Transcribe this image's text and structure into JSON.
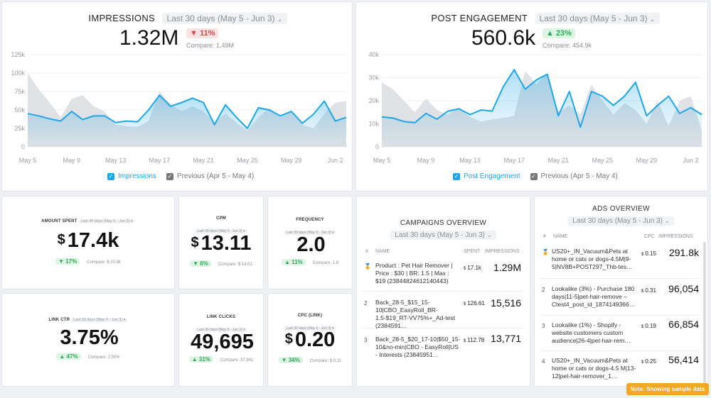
{
  "impressions": {
    "title": "IMPRESSIONS",
    "range": "Last 30 days (May 5 - Jun 3)",
    "value": "1.32M",
    "delta": "▼ 11%",
    "compare": "Compare: 1.49M",
    "y_ticks": [
      "125k",
      "100k",
      "75k",
      "50k",
      "25k",
      "0"
    ],
    "x_ticks": [
      "May 5",
      "May 9",
      "May 13",
      "May 17",
      "May 21",
      "May 25",
      "May 29",
      "Jun 2"
    ],
    "legend_current": "Impressions",
    "legend_previous": "Previous (Apr 5 - May 4)"
  },
  "engagement": {
    "title": "POST ENGAGEMENT",
    "range": "Last 30 days (May 5 - Jun 3)",
    "value": "560.6k",
    "delta": "▲ 23%",
    "compare": "Compare: 454.9k",
    "y_ticks": [
      "40k",
      "30k",
      "20k",
      "10k",
      "0"
    ],
    "x_ticks": [
      "May 5",
      "May 9",
      "May 13",
      "May 17",
      "May 21",
      "May 25",
      "May 29",
      "Jun 2"
    ],
    "legend_current": "Post Engagement",
    "legend_previous": "Previous (Apr 5 - May 4)"
  },
  "chart_data": [
    {
      "type": "area",
      "title": "IMPRESSIONS",
      "ylim": [
        0,
        125000
      ],
      "x": [
        "May 5",
        "May 6",
        "May 7",
        "May 8",
        "May 9",
        "May 10",
        "May 11",
        "May 12",
        "May 13",
        "May 14",
        "May 15",
        "May 16",
        "May 17",
        "May 18",
        "May 19",
        "May 20",
        "May 21",
        "May 22",
        "May 23",
        "May 24",
        "May 25",
        "May 26",
        "May 27",
        "May 28",
        "May 29",
        "May 30",
        "May 31",
        "Jun 1",
        "Jun 2",
        "Jun 3"
      ],
      "series": [
        {
          "name": "Impressions",
          "values": [
            45000,
            42000,
            38000,
            35000,
            48000,
            37000,
            42000,
            42000,
            33000,
            35000,
            34000,
            50000,
            70000,
            55000,
            60000,
            66000,
            60000,
            30000,
            57000,
            40000,
            25000,
            53000,
            50000,
            42000,
            48000,
            32000,
            44000,
            62000,
            35000,
            40000
          ]
        },
        {
          "name": "Previous (Apr 5 - May 4)",
          "values": [
            100000,
            78000,
            60000,
            40000,
            65000,
            70000,
            55000,
            48000,
            30000,
            28000,
            27000,
            35000,
            75000,
            58000,
            48000,
            55000,
            48000,
            34000,
            45000,
            33000,
            22000,
            40000,
            52000,
            40000,
            47000,
            30000,
            25000,
            45000,
            60000,
            62000
          ]
        }
      ]
    },
    {
      "type": "area",
      "title": "POST ENGAGEMENT",
      "ylim": [
        0,
        40000
      ],
      "x": [
        "May 5",
        "May 6",
        "May 7",
        "May 8",
        "May 9",
        "May 10",
        "May 11",
        "May 12",
        "May 13",
        "May 14",
        "May 15",
        "May 16",
        "May 17",
        "May 18",
        "May 19",
        "May 20",
        "May 21",
        "May 22",
        "May 23",
        "May 24",
        "May 25",
        "May 26",
        "May 27",
        "May 28",
        "May 29",
        "May 30",
        "May 31",
        "Jun 1",
        "Jun 2",
        "Jun 3"
      ],
      "series": [
        {
          "name": "Post Engagement",
          "values": [
            13000,
            12500,
            11000,
            10500,
            14500,
            12000,
            15500,
            16500,
            14000,
            16000,
            15500,
            26000,
            33500,
            25000,
            29000,
            31500,
            13500,
            24000,
            8500,
            24000,
            22000,
            18000,
            22000,
            28000,
            13500,
            18000,
            22000,
            14500,
            17000,
            14000
          ]
        },
        {
          "name": "Previous (Apr 5 - May 4)",
          "values": [
            28000,
            25000,
            20000,
            15000,
            21000,
            16000,
            14000,
            17000,
            13000,
            11000,
            12000,
            12500,
            13500,
            33000,
            27000,
            32000,
            15000,
            18000,
            14000,
            27000,
            20000,
            14000,
            19000,
            16000,
            10000,
            20000,
            9000,
            20000,
            22000,
            7000
          ]
        }
      ]
    }
  ],
  "kpis": {
    "amount_spent": {
      "title": "AMOUNT SPENT",
      "range": "Last 30 days (May 5 - Jun 3)",
      "currency": "$",
      "value": "17.4k",
      "delta": "▼ 17%",
      "compare": "Compare: $ 20.8k"
    },
    "cpm": {
      "title": "CPM",
      "range": "Last 30 days (May 5 - Jun 3)",
      "currency": "$",
      "value": "13.11",
      "delta": "▼ 6%",
      "compare": "Compare: $ 14.01"
    },
    "frequency": {
      "title": "FREQUENCY",
      "range": "Last 30 days (May 5 - Jun 3)",
      "currency": "",
      "value": "2.0",
      "delta": "▲ 11%",
      "compare": "Compare: 1.8"
    },
    "link_ctr": {
      "title": "LINK CTR",
      "range": "Last 30 days (May 5 - Jun 3)",
      "currency": "",
      "value": "3.75%",
      "delta": "▲ 47%",
      "compare": "Compare: 2.55%"
    },
    "link_clicks": {
      "title": "LINK CLICKS",
      "range": "Last 30 days (May 5 - Jun 3)",
      "currency": "",
      "value": "49,695",
      "delta": "▲ 31%",
      "compare": "Compare: 37,941"
    },
    "cpc": {
      "title": "CPC (LINK)",
      "range": "Last 30 days (May 5 - Jun 3)",
      "currency": "$",
      "value": "0.20",
      "delta": "▼ 34%",
      "compare": "Compare: $ 0.31"
    }
  },
  "campaigns": {
    "title": "CAMPAIGNS OVERVIEW",
    "range": "Last 30 days (May 5 - Jun 3)",
    "headers": {
      "idx": "#",
      "name": "NAME",
      "spent": "SPENT",
      "impressions": "IMPRESSIONS"
    },
    "rows": [
      {
        "idx": "🏅",
        "name": "Product : Pet Hair Remover | Price : $30 | BR: 1.5 | Max : $19 (23844824612140443)",
        "spent_cur": "$",
        "spent": "17.1k",
        "impressions": "1.29M"
      },
      {
        "idx": "2",
        "name": "Back_28-5_$15_15-10|CBO_EasyRoll_BR-1.5-$19_RT-VV75%+_Ad-test (2384591…",
        "spent_cur": "$",
        "spent": "126.61",
        "impressions": "15,516"
      },
      {
        "idx": "3",
        "name": "Back_28-5_$20_17-10|$50_15-10&no-min|CBO - EasyRoll|US - Interests (23845951…",
        "spent_cur": "$",
        "spent": "112.78",
        "impressions": "13,771"
      }
    ]
  },
  "ads": {
    "title": "ADS OVERVIEW",
    "range": "Last 30 days (May 5 - Jun 3)",
    "headers": {
      "idx": "#",
      "name": "NAME",
      "cpc": "CPC",
      "impressions": "IMPRESSIONS"
    },
    "rows": [
      {
        "idx": "🏅",
        "name": "US20+_IN_Vacuum&Pets at home or cats or dogs-4.5M|9-5|NV8B+POST297_Thb-tes…",
        "cpc_cur": "$",
        "cpc": "0.15",
        "impressions": "291.8k"
      },
      {
        "idx": "2",
        "name": "Lookalike (3%) - Purchase 180 days|11-5|pet-hair-remove – Ctest4_post_id_1874149366…",
        "cpc_cur": "$",
        "cpc": "0.31",
        "impressions": "96,054"
      },
      {
        "idx": "3",
        "name": "Lookalike (1%) - Shopify - website customers custom audience|26-4|pet-hair-rem…",
        "cpc_cur": "$",
        "cpc": "0.19",
        "impressions": "66,854"
      },
      {
        "idx": "4",
        "name": "US20+_IN_Vacuum&Pets at home or cats or dogs-4.5 M|13-12|pet-hair-remover_1…",
        "cpc_cur": "$",
        "cpc": "0.25",
        "impressions": "56,414"
      }
    ]
  },
  "note": "Note: Showing sample data",
  "colors": {
    "accent": "#1fa6e8",
    "previous": "#dcdde0",
    "up": "#2eaa55",
    "down": "#e04444",
    "note": "#f5a623"
  }
}
